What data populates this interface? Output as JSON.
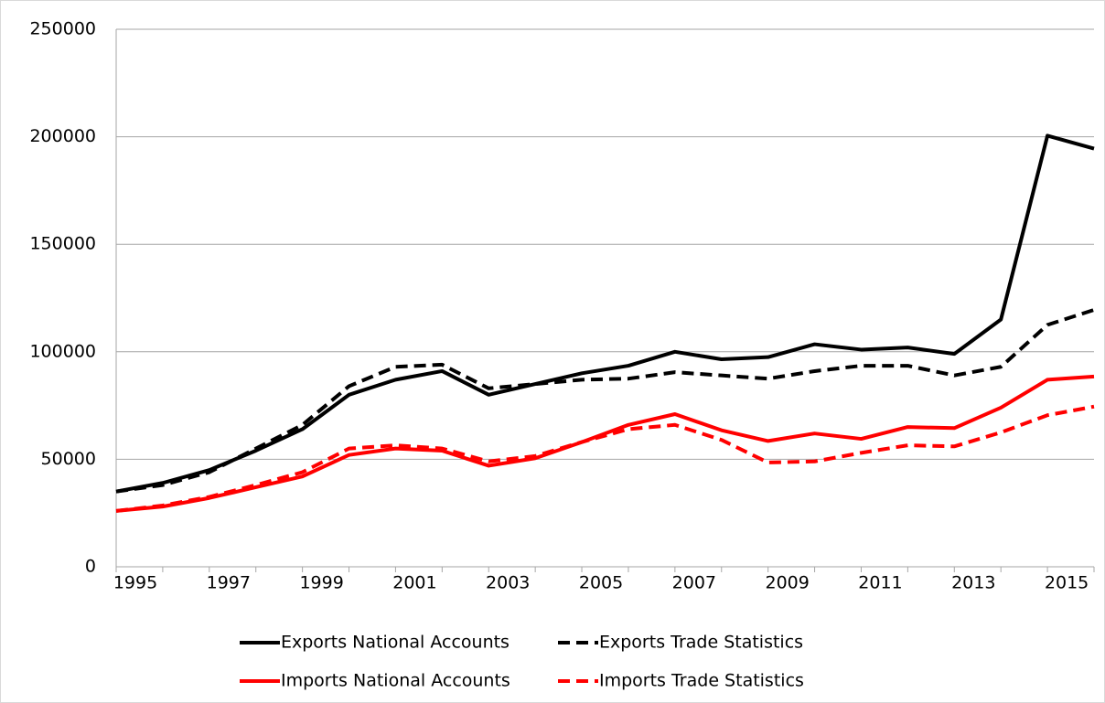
{
  "chart_data": {
    "type": "line",
    "categories": [
      "1995",
      null,
      "1997",
      null,
      "1999",
      null,
      "2001",
      null,
      "2003",
      null,
      "2005",
      null,
      "2007",
      null,
      "2009",
      null,
      "2011",
      null,
      "2013",
      null,
      "2015",
      null
    ],
    "series": [
      {
        "name": "Exports National Accounts",
        "color": "#000000",
        "line_style": "solid",
        "values": [
          35000,
          39000,
          45000,
          54000,
          64000,
          80000,
          87000,
          91000,
          80000,
          85000,
          90000,
          93500,
          100000,
          96500,
          97500,
          103500,
          101000,
          102000,
          99000,
          115000,
          200500,
          194500
        ]
      },
      {
        "name": "Exports Trade Statistics",
        "color": "#000000",
        "line_style": "dashed",
        "values": [
          35000,
          38000,
          44000,
          55000,
          66000,
          84000,
          93000,
          94000,
          83000,
          85000,
          87000,
          87500,
          90500,
          89000,
          87500,
          91000,
          93500,
          93500,
          89000,
          93000,
          112500,
          119500
        ]
      },
      {
        "name": "Imports National Accounts",
        "color": "#ff0000",
        "line_style": "solid",
        "values": [
          26000,
          28000,
          32000,
          37000,
          42000,
          52000,
          55000,
          54000,
          47000,
          50500,
          58000,
          66000,
          71000,
          63500,
          58500,
          62000,
          59500,
          65000,
          64500,
          74000,
          87000,
          88500
        ]
      },
      {
        "name": "Imports Trade Statistics",
        "color": "#ff0000",
        "line_style": "dashed",
        "values": [
          26000,
          28500,
          32500,
          38000,
          44000,
          55000,
          56500,
          55000,
          49000,
          51500,
          58000,
          64000,
          66000,
          59000,
          48500,
          49000,
          53000,
          56500,
          56000,
          62500,
          70500,
          74500
        ]
      }
    ],
    "ylim": [
      0,
      250000
    ],
    "yticks": [
      0,
      50000,
      100000,
      150000,
      200000,
      250000
    ],
    "grid": true,
    "legend": "bottom"
  }
}
